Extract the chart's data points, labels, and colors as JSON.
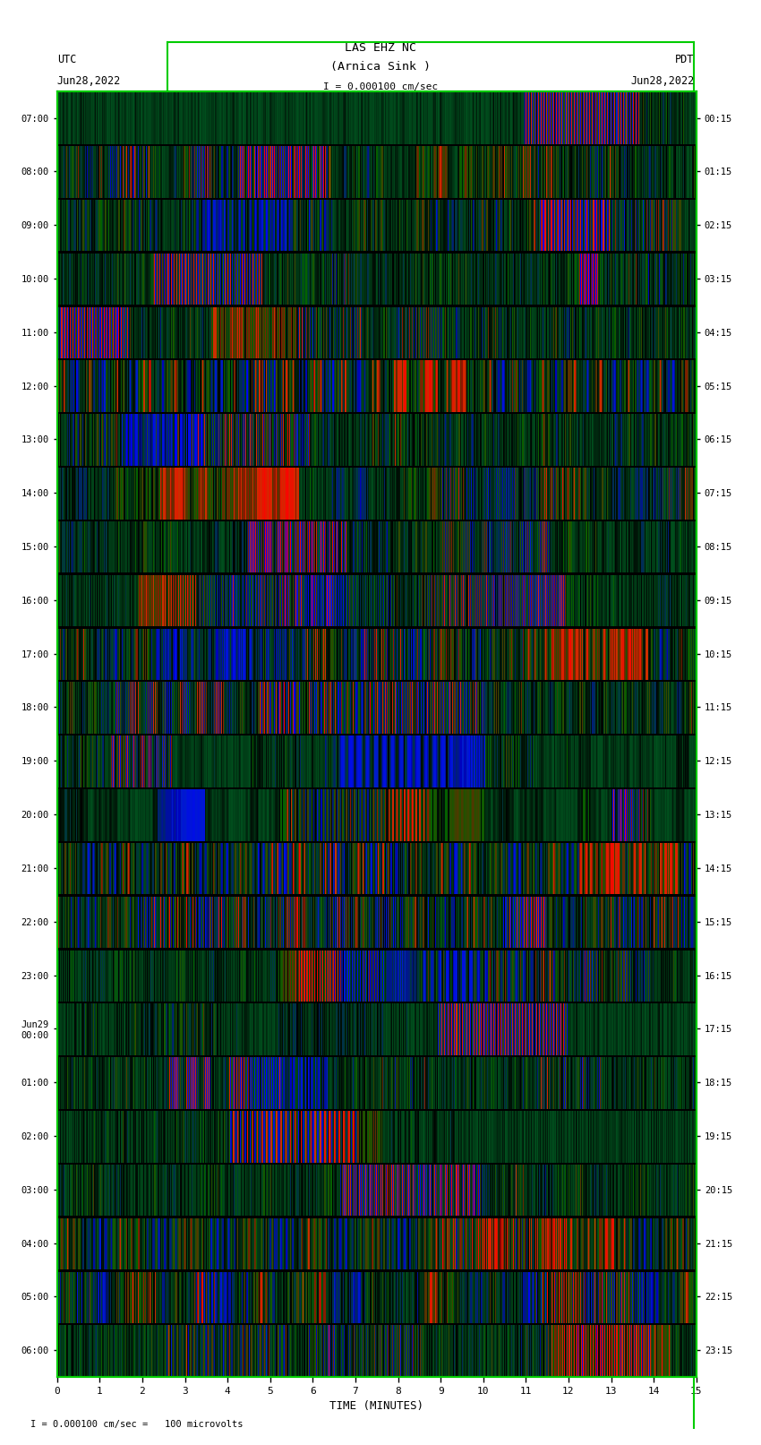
{
  "title_line1": "LAS EHZ NC",
  "title_line2": "(Arnica Sink )",
  "title_scale": "I = 0.000100 cm/sec",
  "left_label_top": "UTC",
  "left_label_date": "Jun28,2022",
  "right_label_top": "PDT",
  "right_label_date": "Jun28,2022",
  "xlabel": "TIME (MINUTES)",
  "footer_text": "= 0.000100 cm/sec =   100 microvolts",
  "utc_labels": [
    "07:00",
    "08:00",
    "09:00",
    "10:00",
    "11:00",
    "12:00",
    "13:00",
    "14:00",
    "15:00",
    "16:00",
    "17:00",
    "18:00",
    "19:00",
    "20:00",
    "21:00",
    "22:00",
    "23:00",
    "Jun29\n00:00",
    "01:00",
    "02:00",
    "03:00",
    "04:00",
    "05:00",
    "06:00"
  ],
  "pdt_labels": [
    "00:15",
    "01:15",
    "02:15",
    "03:15",
    "04:15",
    "05:15",
    "06:15",
    "07:15",
    "08:15",
    "09:15",
    "10:15",
    "11:15",
    "12:15",
    "13:15",
    "14:15",
    "15:15",
    "16:15",
    "17:15",
    "18:15",
    "19:15",
    "20:15",
    "21:15",
    "22:15",
    "23:15"
  ],
  "x_ticks": [
    0,
    1,
    2,
    3,
    4,
    5,
    6,
    7,
    8,
    9,
    10,
    11,
    12,
    13,
    14,
    15
  ],
  "border_color": "#00cc00",
  "fig_bg": "#ffffff",
  "num_rows": 24,
  "minutes_per_row": 15,
  "seed": 42
}
